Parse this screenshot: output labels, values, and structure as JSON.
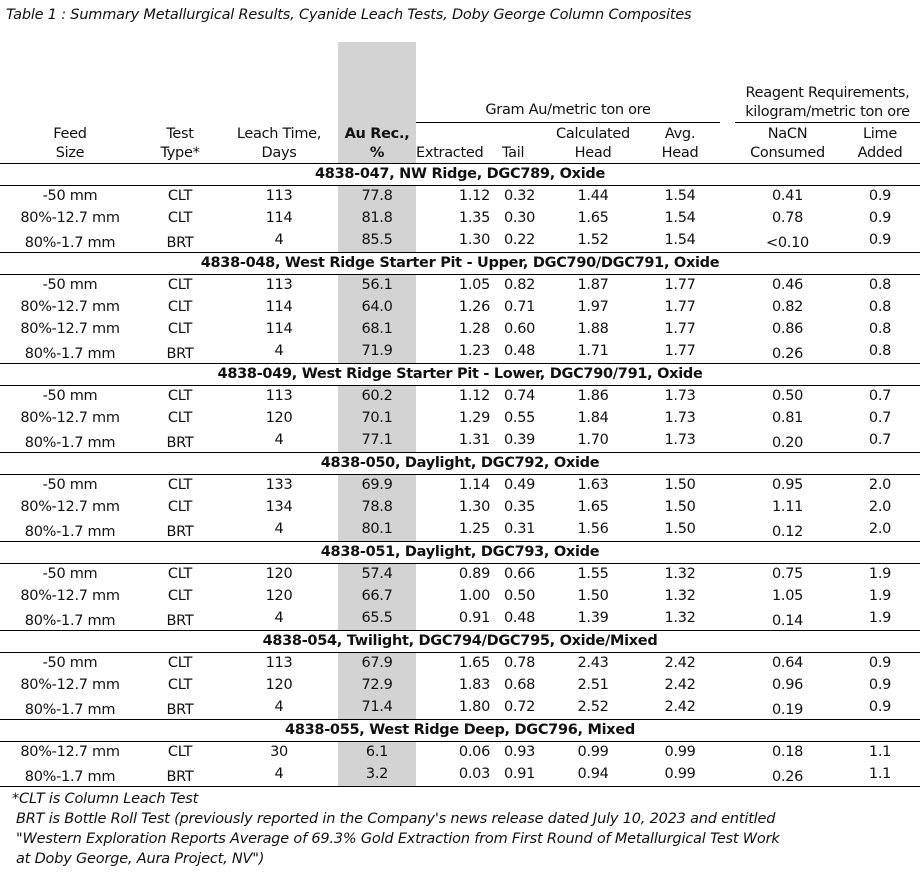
{
  "title": "Table 1 : Summary Metallurgical Results, Cyanide Leach Tests, Doby George Column Composites",
  "headers": {
    "gram_group": "Gram Au/metric ton ore",
    "reagent_group": "Reagent Requirements, kilogram/metric ton ore",
    "feed_size": [
      "Feed",
      "Size"
    ],
    "test_type": [
      "Test",
      "Type*"
    ],
    "leach_time": [
      "Leach Time,",
      "Days"
    ],
    "au_rec": [
      "Au Rec.,",
      "%"
    ],
    "extracted": "Extracted",
    "tail": "Tail",
    "calc_head": [
      "Calculated",
      "Head"
    ],
    "avg_head": [
      "Avg.",
      "Head"
    ],
    "nacn": [
      "NaCN",
      "Consumed"
    ],
    "lime": [
      "Lime",
      "Added"
    ]
  },
  "groups": [
    {
      "name": "4838-047, NW Ridge, DGC789, Oxide",
      "rows": [
        [
          "-50 mm",
          "CLT",
          "113",
          "77.8",
          "1.12",
          "0.32",
          "1.44",
          "1.54",
          "0.41",
          "0.9"
        ],
        [
          "80%-12.7 mm",
          "CLT",
          "114",
          "81.8",
          "1.35",
          "0.30",
          "1.65",
          "1.54",
          "0.78",
          "0.9"
        ],
        [
          "80%-1.7 mm",
          "BRT",
          "4",
          "85.5",
          "1.30",
          "0.22",
          "1.52",
          "1.54",
          "<0.10",
          "0.9"
        ]
      ]
    },
    {
      "name": "4838-048, West Ridge Starter Pit - Upper, DGC790/DGC791, Oxide",
      "rows": [
        [
          "-50 mm",
          "CLT",
          "113",
          "56.1",
          "1.05",
          "0.82",
          "1.87",
          "1.77",
          "0.46",
          "0.8"
        ],
        [
          "80%-12.7 mm",
          "CLT",
          "114",
          "64.0",
          "1.26",
          "0.71",
          "1.97",
          "1.77",
          "0.82",
          "0.8"
        ],
        [
          "80%-12.7 mm",
          "CLT",
          "114",
          "68.1",
          "1.28",
          "0.60",
          "1.88",
          "1.77",
          "0.86",
          "0.8"
        ],
        [
          "80%-1.7 mm",
          "BRT",
          "4",
          "71.9",
          "1.23",
          "0.48",
          "1.71",
          "1.77",
          "0.26",
          "0.8"
        ]
      ]
    },
    {
      "name": "4838-049, West Ridge Starter Pit - Lower, DGC790/791, Oxide",
      "rows": [
        [
          "-50 mm",
          "CLT",
          "113",
          "60.2",
          "1.12",
          "0.74",
          "1.86",
          "1.73",
          "0.50",
          "0.7"
        ],
        [
          "80%-12.7 mm",
          "CLT",
          "120",
          "70.1",
          "1.29",
          "0.55",
          "1.84",
          "1.73",
          "0.81",
          "0.7"
        ],
        [
          "80%-1.7 mm",
          "BRT",
          "4",
          "77.1",
          "1.31",
          "0.39",
          "1.70",
          "1.73",
          "0.20",
          "0.7"
        ]
      ]
    },
    {
      "name": "4838-050, Daylight, DGC792, Oxide",
      "rows": [
        [
          "-50 mm",
          "CLT",
          "133",
          "69.9",
          "1.14",
          "0.49",
          "1.63",
          "1.50",
          "0.95",
          "2.0"
        ],
        [
          "80%-12.7 mm",
          "CLT",
          "134",
          "78.8",
          "1.30",
          "0.35",
          "1.65",
          "1.50",
          "1.11",
          "2.0"
        ],
        [
          "80%-1.7 mm",
          "BRT",
          "4",
          "80.1",
          "1.25",
          "0.31",
          "1.56",
          "1.50",
          "0.12",
          "2.0"
        ]
      ]
    },
    {
      "name": "4838-051, Daylight, DGC793, Oxide",
      "rows": [
        [
          "-50 mm",
          "CLT",
          "120",
          "57.4",
          "0.89",
          "0.66",
          "1.55",
          "1.32",
          "0.75",
          "1.9"
        ],
        [
          "80%-12.7 mm",
          "CLT",
          "120",
          "66.7",
          "1.00",
          "0.50",
          "1.50",
          "1.32",
          "1.05",
          "1.9"
        ],
        [
          "80%-1.7 mm",
          "BRT",
          "4",
          "65.5",
          "0.91",
          "0.48",
          "1.39",
          "1.32",
          "0.14",
          "1.9"
        ]
      ]
    },
    {
      "name": "4838-054, Twilight, DGC794/DGC795, Oxide/Mixed",
      "rows": [
        [
          "-50 mm",
          "CLT",
          "113",
          "67.9",
          "1.65",
          "0.78",
          "2.43",
          "2.42",
          "0.64",
          "0.9"
        ],
        [
          "80%-12.7 mm",
          "CLT",
          "120",
          "72.9",
          "1.83",
          "0.68",
          "2.51",
          "2.42",
          "0.96",
          "0.9"
        ],
        [
          "80%-1.7 mm",
          "BRT",
          "4",
          "71.4",
          "1.80",
          "0.72",
          "2.52",
          "2.42",
          "0.19",
          "0.9"
        ]
      ]
    },
    {
      "name": "4838-055, West Ridge Deep, DGC796, Mixed",
      "rows": [
        [
          "80%-12.7 mm",
          "CLT",
          "30",
          "6.1",
          "0.06",
          "0.93",
          "0.99",
          "0.99",
          "0.18",
          "1.1"
        ],
        [
          "80%-1.7 mm",
          "BRT",
          "4",
          "3.2",
          "0.03",
          "0.91",
          "0.94",
          "0.99",
          "0.26",
          "1.1"
        ]
      ]
    }
  ],
  "footnotes": [
    "*CLT is Column Leach Test",
    "BRT is Bottle Roll Test (previously reported in the Company's news release dated July 10, 2023 and entitled",
    "\"Western Exploration Reports Average of 69.3% Gold Extraction from First Round of Metallurgical Test Work",
    "at Doby George, Aura Project, NV\")"
  ]
}
